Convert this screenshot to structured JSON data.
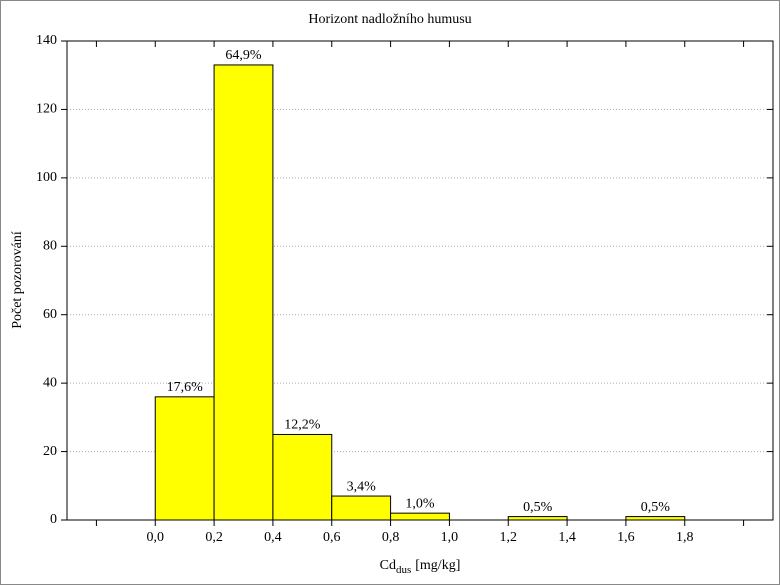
{
  "chart_data": {
    "type": "histogram",
    "title": "Horizont nadložního humusu",
    "x_label": [
      "Cd",
      "dus",
      "[mg/kg]"
    ],
    "y_label": "Počet pozorování",
    "bins": [
      0,
      0.2,
      0.4,
      0.6,
      0.8,
      1.0,
      1.2,
      1.4,
      1.6,
      1.8
    ],
    "values": [
      36,
      133,
      25,
      7,
      2,
      0,
      1,
      0,
      1
    ],
    "percent_labels": [
      "17,6%",
      "64,9%",
      "12,2%",
      "3,4%",
      "1,0%",
      null,
      "0,5%",
      null,
      "0,5%"
    ],
    "color": "#ffff00",
    "xlim": [
      -0.3,
      2.1
    ],
    "xticks": [
      {
        "value": -0.2,
        "label": null
      },
      {
        "value": 0,
        "label": "0,0"
      },
      {
        "value": 0.2,
        "label": "0,2"
      },
      {
        "value": 0.4,
        "label": "0,4"
      },
      {
        "value": 0.6,
        "label": "0,6"
      },
      {
        "value": 0.8,
        "label": "0,8"
      },
      {
        "value": 1.0,
        "label": "1,0"
      },
      {
        "value": 1.2,
        "label": "1,2"
      },
      {
        "value": 1.4,
        "label": "1,4"
      },
      {
        "value": 1.6,
        "label": "1,6"
      },
      {
        "value": 1.8,
        "label": "1,8"
      },
      {
        "value": 2.0,
        "label": null
      }
    ],
    "ylim": [
      0,
      140
    ],
    "yticks": [
      0,
      20,
      40,
      60,
      80,
      100,
      120,
      140
    ],
    "grid": true
  }
}
